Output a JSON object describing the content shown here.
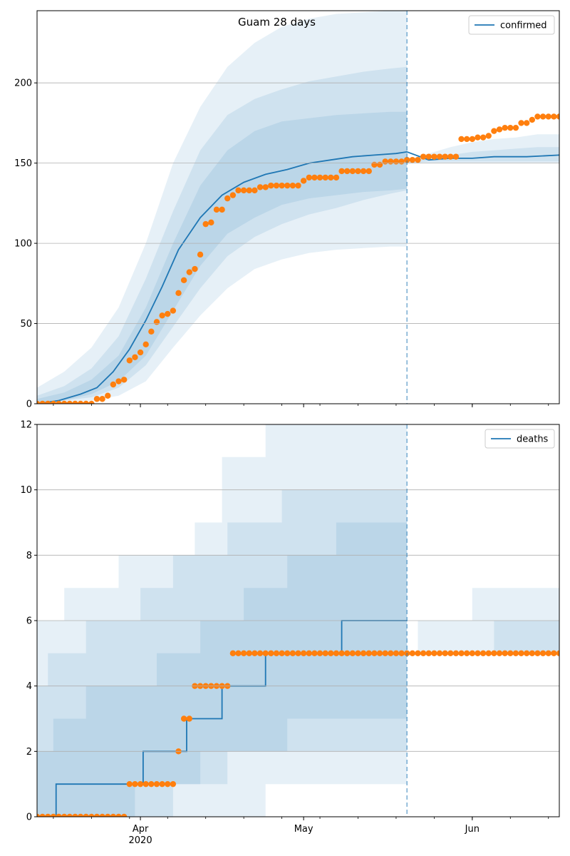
{
  "chart_data": [
    {
      "type": "line",
      "title": "Guam 28 days",
      "legend": {
        "label": "confirmed",
        "placement": "top-right"
      },
      "ylim": [
        0,
        245
      ],
      "yticks": [
        0,
        50,
        100,
        150,
        200
      ],
      "grid": "y",
      "x_start_date": "2020-03-13",
      "xlim_days": [
        0,
        96
      ],
      "xticks": [
        {
          "day": 19,
          "label": "Apr",
          "sub": "2020"
        },
        {
          "day": 49,
          "label": "May",
          "sub": ""
        },
        {
          "day": 80,
          "label": "Jun",
          "sub": ""
        }
      ],
      "forecast_start_day": 68,
      "series": [
        {
          "name": "confirmed",
          "style": "line",
          "x_days": [
            0,
            4,
            8,
            11,
            14,
            17,
            20,
            23,
            26,
            30,
            34,
            38,
            42,
            46,
            50,
            54,
            58,
            62,
            66,
            68,
            72,
            76,
            80,
            84,
            90,
            96
          ],
          "values": [
            0,
            2,
            6,
            10,
            20,
            34,
            52,
            73,
            96,
            116,
            130,
            138,
            143,
            146,
            150,
            152,
            154,
            155,
            156,
            157,
            152,
            153,
            153,
            154,
            154,
            155
          ]
        },
        {
          "name": "observed",
          "style": "points",
          "x_days": [
            0,
            1,
            2,
            3,
            4,
            5,
            6,
            7,
            8,
            9,
            10,
            11,
            12,
            13,
            14,
            15,
            16,
            17,
            18,
            19,
            20,
            21,
            22,
            23,
            24,
            25,
            26,
            27,
            28,
            29,
            30,
            31,
            32,
            33,
            34,
            35,
            36,
            37,
            38,
            39,
            40,
            41,
            42,
            43,
            44,
            45,
            46,
            47,
            48,
            49,
            50,
            51,
            52,
            53,
            54,
            55,
            56,
            57,
            58,
            59,
            60,
            61,
            62,
            63,
            64,
            65,
            66,
            67,
            68,
            69,
            70,
            71,
            72,
            73,
            74,
            75,
            76,
            77,
            78,
            79,
            80,
            81,
            82,
            83,
            84,
            85,
            86,
            87,
            88,
            89,
            90,
            91,
            92,
            93,
            94,
            95,
            96
          ],
          "values": [
            0,
            0,
            0,
            0,
            0,
            0,
            0,
            0,
            0,
            0,
            0,
            3,
            3,
            5,
            12,
            14,
            15,
            27,
            29,
            32,
            37,
            45,
            51,
            55,
            56,
            58,
            69,
            77,
            82,
            84,
            93,
            112,
            113,
            121,
            121,
            128,
            130,
            133,
            133,
            133,
            133,
            135,
            135,
            136,
            136,
            136,
            136,
            136,
            136,
            139,
            141,
            141,
            141,
            141,
            141,
            141,
            145,
            145,
            145,
            145,
            145,
            145,
            149,
            149,
            151,
            151,
            151,
            151,
            152,
            152,
            152,
            154,
            154,
            154,
            154,
            154,
            154,
            154,
            165,
            165,
            165,
            166,
            166,
            167,
            170,
            171,
            172,
            172,
            172,
            175,
            175,
            177,
            179,
            179,
            179,
            179,
            179
          ]
        }
      ],
      "bands": [
        {
          "level": "outer",
          "x_days": [
            0,
            5,
            10,
            15,
            20,
            25,
            30,
            35,
            40,
            45,
            50,
            55,
            60,
            65,
            68
          ],
          "lower": [
            0,
            1,
            2,
            5,
            14,
            35,
            55,
            72,
            84,
            90,
            94,
            96,
            97,
            98,
            98
          ],
          "upper": [
            10,
            20,
            35,
            60,
            100,
            150,
            185,
            210,
            225,
            235,
            240,
            243,
            244,
            245,
            245
          ]
        },
        {
          "level": "middle",
          "x_days": [
            0,
            5,
            10,
            15,
            20,
            25,
            30,
            35,
            40,
            45,
            50,
            55,
            60,
            65,
            68
          ],
          "lower": [
            0,
            2,
            4,
            10,
            24,
            48,
            72,
            92,
            104,
            112,
            118,
            122,
            127,
            131,
            133
          ],
          "upper": [
            5,
            11,
            22,
            42,
            78,
            120,
            158,
            180,
            190,
            196,
            201,
            204,
            207,
            209,
            210
          ]
        },
        {
          "level": "inner",
          "x_days": [
            0,
            5,
            10,
            15,
            20,
            25,
            30,
            35,
            40,
            45,
            50,
            55,
            60,
            65,
            68
          ],
          "lower": [
            0,
            2,
            6,
            14,
            30,
            58,
            86,
            106,
            116,
            124,
            128,
            130,
            132,
            133,
            134
          ],
          "upper": [
            3,
            7,
            15,
            30,
            60,
            100,
            136,
            158,
            170,
            176,
            178,
            180,
            181,
            182,
            182
          ]
        },
        {
          "level": "outer",
          "x_days": [
            68,
            72,
            76,
            80,
            84,
            88,
            92,
            96
          ],
          "lower": [
            150,
            150,
            150,
            150,
            150,
            150,
            150,
            150
          ],
          "upper": [
            152,
            156,
            160,
            163,
            165,
            166,
            168,
            168
          ]
        },
        {
          "level": "inner",
          "x_days": [
            68,
            72,
            76,
            80,
            84,
            88,
            92,
            96
          ],
          "lower": [
            150,
            151,
            151,
            151,
            151,
            151,
            151,
            151
          ],
          "upper": [
            152,
            153,
            155,
            157,
            158,
            159,
            160,
            160
          ]
        }
      ]
    },
    {
      "type": "line",
      "legend": {
        "label": "deaths",
        "placement": "top-right"
      },
      "ylim": [
        0,
        12
      ],
      "yticks": [
        0,
        2,
        4,
        6,
        8,
        10,
        12
      ],
      "grid": "y",
      "x_start_date": "2020-03-13",
      "xlim_days": [
        0,
        96
      ],
      "xticks": [
        {
          "day": 19,
          "label": "Apr",
          "sub": "2020"
        },
        {
          "day": 49,
          "label": "May",
          "sub": ""
        },
        {
          "day": 80,
          "label": "Jun",
          "sub": ""
        }
      ],
      "forecast_start_day": 68,
      "series": [
        {
          "name": "deaths",
          "style": "step",
          "x_days": [
            0,
            3.5,
            19.5,
            27.5,
            34,
            42,
            56,
            68
          ],
          "values": [
            0,
            1,
            2,
            3,
            4,
            5,
            6,
            6
          ]
        },
        {
          "name": "observed",
          "style": "points",
          "x_days": [
            0,
            1,
            2,
            3,
            4,
            5,
            6,
            7,
            8,
            9,
            10,
            11,
            12,
            13,
            14,
            15,
            16,
            17,
            18,
            19,
            20,
            21,
            22,
            23,
            24,
            25,
            26,
            27,
            28,
            29,
            30,
            31,
            32,
            33,
            34,
            35,
            36,
            37,
            38,
            39,
            40,
            41,
            42,
            43,
            44,
            45,
            46,
            47,
            48,
            49,
            50,
            51,
            52,
            53,
            54,
            55,
            56,
            57,
            58,
            59,
            60,
            61,
            62,
            63,
            64,
            65,
            66,
            67,
            68,
            69,
            70,
            71,
            72,
            73,
            74,
            75,
            76,
            77,
            78,
            79,
            80,
            81,
            82,
            83,
            84,
            85,
            86,
            87,
            88,
            89,
            90,
            91,
            92,
            93,
            94,
            95,
            96
          ],
          "values": [
            0,
            0,
            0,
            0,
            0,
            0,
            0,
            0,
            0,
            0,
            0,
            0,
            0,
            0,
            0,
            0,
            0,
            1,
            1,
            1,
            1,
            1,
            1,
            1,
            1,
            1,
            2,
            3,
            3,
            4,
            4,
            4,
            4,
            4,
            4,
            4,
            5,
            5,
            5,
            5,
            5,
            5,
            5,
            5,
            5,
            5,
            5,
            5,
            5,
            5,
            5,
            5,
            5,
            5,
            5,
            5,
            5,
            5,
            5,
            5,
            5,
            5,
            5,
            5,
            5,
            5,
            5,
            5,
            5,
            5,
            5,
            5,
            5,
            5,
            5,
            5,
            5,
            5,
            5,
            5,
            5,
            5,
            5,
            5,
            5,
            5,
            5,
            5,
            5,
            5,
            5,
            5,
            5,
            5,
            5,
            5,
            5
          ]
        }
      ],
      "bands": [
        {
          "level": "outer",
          "step": true,
          "x_days": [
            0,
            5,
            11,
            15,
            29,
            34,
            42,
            48,
            68
          ],
          "lower": [
            0,
            0,
            0,
            0,
            0,
            0,
            1,
            1,
            1
          ],
          "upper": [
            6,
            7,
            7,
            8,
            9,
            11,
            12,
            12,
            12
          ]
        },
        {
          "level": "middle",
          "step": true,
          "x_days": [
            0,
            2,
            9,
            15,
            19,
            25,
            35,
            45,
            68
          ],
          "lower": [
            0,
            0,
            0,
            0,
            0,
            1,
            2,
            2,
            2
          ],
          "upper": [
            4,
            5,
            6,
            6,
            7,
            8,
            9,
            10,
            11
          ]
        },
        {
          "level": "inner",
          "step": true,
          "x_days": [
            0,
            3,
            9,
            18,
            22,
            30,
            38,
            46,
            55,
            68
          ],
          "lower": [
            0,
            0,
            0,
            1,
            1,
            2,
            2,
            3,
            3,
            3
          ],
          "upper": [
            2,
            3,
            4,
            4,
            5,
            6,
            7,
            8,
            9,
            11
          ]
        },
        {
          "level": "outer",
          "step": true,
          "x_days": [
            70,
            80,
            96
          ],
          "lower": [
            5,
            5,
            5
          ],
          "upper": [
            6,
            7,
            7
          ]
        },
        {
          "level": "inner",
          "step": true,
          "x_days": [
            70,
            84,
            96
          ],
          "lower": [
            5,
            5,
            5
          ],
          "upper": [
            5,
            6,
            6
          ]
        }
      ]
    }
  ],
  "colors": {
    "line": "#1f77b4",
    "points": "#ff7f0e",
    "band": "#1f77b4",
    "grid": "#b0b0b0",
    "forecast_line": "#1f77b4"
  }
}
